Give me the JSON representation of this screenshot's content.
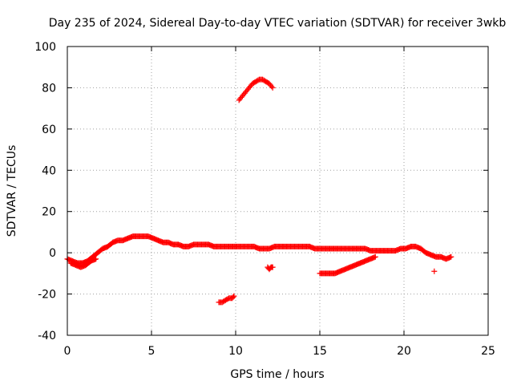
{
  "chart_data": {
    "type": "scatter",
    "title": "Day 235 of 2024, Sidereal Day-to-day VTEC variation (SDTVAR) for receiver 3wkb",
    "xlabel": "GPS time / hours",
    "ylabel": "SDTVAR / TECUs",
    "xlim": [
      0,
      25
    ],
    "ylim": [
      -40,
      100
    ],
    "xticks": [
      0,
      5,
      10,
      15,
      20,
      25
    ],
    "yticks": [
      -40,
      -20,
      0,
      20,
      40,
      60,
      80,
      100
    ],
    "xtick_labels": [
      "0",
      "5",
      "10",
      "15",
      "20",
      "25"
    ],
    "ytick_labels": [
      "-40",
      "-20",
      "0",
      "20",
      "40",
      "60",
      "80",
      "100"
    ],
    "grid": true,
    "marker": "+",
    "color": "#ff0000",
    "series": [
      {
        "name": "main",
        "x": [
          0.0,
          0.3,
          0.6,
          0.9,
          1.2,
          1.5,
          1.8,
          2.1,
          2.4,
          2.7,
          3.0,
          3.3,
          3.6,
          3.9,
          4.2,
          4.5,
          4.8,
          5.1,
          5.4,
          5.7,
          6.0,
          6.3,
          6.6,
          6.9,
          7.2,
          7.5,
          7.8,
          8.1,
          8.4,
          8.7,
          9.0,
          9.3,
          9.6,
          9.9,
          10.2,
          10.5,
          10.8,
          11.1,
          11.4,
          11.7,
          12.0,
          12.3,
          12.6,
          12.9,
          13.2,
          13.5,
          13.8,
          14.1,
          14.4,
          14.7,
          15.0,
          15.3,
          15.6,
          15.9,
          16.2,
          16.5,
          16.8,
          17.1,
          17.4,
          17.7,
          18.0,
          18.3,
          18.6,
          18.9,
          19.2,
          19.5,
          19.8,
          20.1,
          20.4,
          20.7,
          21.0,
          21.3,
          21.6,
          21.9,
          22.2,
          22.5,
          22.8
        ],
        "y": [
          -3,
          -4,
          -5,
          -5,
          -4,
          -2,
          0,
          2,
          3,
          5,
          6,
          6,
          7,
          8,
          8,
          8,
          8,
          7,
          6,
          5,
          5,
          4,
          4,
          3,
          3,
          4,
          4,
          4,
          4,
          3,
          3,
          3,
          3,
          3,
          3,
          3,
          3,
          3,
          2,
          2,
          2,
          3,
          3,
          3,
          3,
          3,
          3,
          3,
          3,
          2,
          2,
          2,
          2,
          2,
          2,
          2,
          2,
          2,
          2,
          2,
          1,
          1,
          1,
          1,
          1,
          1,
          2,
          2,
          3,
          3,
          2,
          0,
          -1,
          -2,
          -2,
          -3,
          -2
        ]
      },
      {
        "name": "dip-early",
        "x": [
          0.2,
          0.5,
          0.8,
          1.1,
          1.4,
          1.7
        ],
        "y": [
          -5,
          -6,
          -7,
          -6,
          -4,
          -3
        ]
      },
      {
        "name": "high-arc",
        "x": [
          10.2,
          10.4,
          10.6,
          10.8,
          11.0,
          11.2,
          11.4,
          11.6,
          11.8,
          12.0,
          12.2
        ],
        "y": [
          74,
          76,
          78,
          80,
          82,
          83,
          84,
          84,
          83,
          82,
          80
        ]
      },
      {
        "name": "neg-segment",
        "x": [
          9.0,
          9.2,
          9.4,
          9.6,
          9.8,
          9.9
        ],
        "y": [
          -24,
          -24,
          -23,
          -22,
          -22,
          -21
        ]
      },
      {
        "name": "small-dip",
        "x": [
          11.9,
          12.0,
          12.1,
          12.2
        ],
        "y": [
          -7,
          -8,
          -7,
          -7
        ]
      },
      {
        "name": "rise-segment",
        "x": [
          15.0,
          15.3,
          15.6,
          15.9,
          16.2,
          16.5,
          16.8,
          17.1,
          17.4,
          17.7,
          18.0,
          18.3
        ],
        "y": [
          -10,
          -10,
          -10,
          -10,
          -9,
          -8,
          -7,
          -6,
          -5,
          -4,
          -3,
          -2
        ]
      },
      {
        "name": "outlier",
        "x": [
          21.8
        ],
        "y": [
          -9
        ]
      }
    ]
  }
}
